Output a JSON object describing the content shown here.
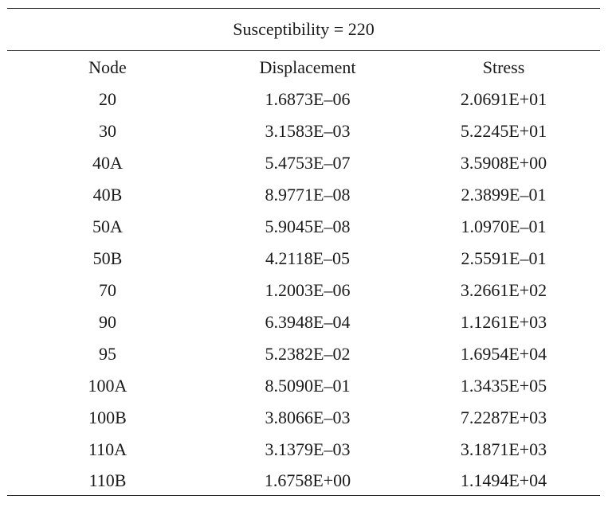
{
  "table": {
    "caption": "Susceptibility = 220",
    "columns": [
      "Node",
      "Displacement",
      "Stress"
    ],
    "rows": [
      [
        "20",
        "1.6873E–06",
        "2.0691E+01"
      ],
      [
        "30",
        "3.1583E–03",
        "5.2245E+01"
      ],
      [
        "40A",
        "5.4753E–07",
        "3.5908E+00"
      ],
      [
        "40B",
        "8.9771E–08",
        "2.3899E–01"
      ],
      [
        "50A",
        "5.9045E–08",
        "1.0970E–01"
      ],
      [
        "50B",
        "4.2118E–05",
        "2.5591E–01"
      ],
      [
        "70",
        "1.2003E–06",
        "3.2661E+02"
      ],
      [
        "90",
        "6.3948E–04",
        "1.1261E+03"
      ],
      [
        "95",
        "5.2382E–02",
        "1.6954E+04"
      ],
      [
        "100A",
        "8.5090E–01",
        "1.3435E+05"
      ],
      [
        "100B",
        "3.8066E–03",
        "7.2287E+03"
      ],
      [
        "110A",
        "3.1379E–03",
        "3.1871E+03"
      ],
      [
        "110B",
        "1.6758E+00",
        "1.1494E+04"
      ]
    ]
  }
}
